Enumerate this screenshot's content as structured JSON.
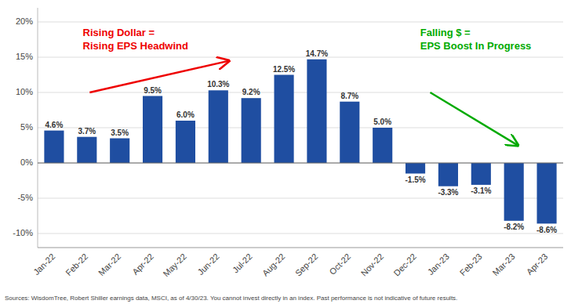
{
  "chart_data": {
    "type": "bar",
    "categories": [
      "Jan-22",
      "Feb-22",
      "Mar-22",
      "Apr-22",
      "May-22",
      "Jun-22",
      "Jul-22",
      "Aug-22",
      "Sep-22",
      "Oct-22",
      "Nov-22",
      "Dec-22",
      "Jan-23",
      "Feb-23",
      "Mar-23",
      "Apr-23"
    ],
    "values": [
      4.6,
      3.7,
      3.5,
      9.5,
      6.0,
      10.3,
      9.2,
      12.5,
      14.7,
      8.7,
      5.0,
      -1.5,
      -3.3,
      -3.1,
      -8.2,
      -8.6
    ],
    "value_labels": [
      "4.6%",
      "3.7%",
      "3.5%",
      "9.5%",
      "6.0%",
      "10.3%",
      "9.2%",
      "12.5%",
      "14.7%",
      "8.7%",
      "5.0%",
      "-1.5%",
      "-3.3%",
      "-3.1%",
      "-8.2%",
      "-8.6%"
    ],
    "data_labels": true,
    "color": "#1f4ea1",
    "ylim": [
      -12,
      22
    ],
    "yticks": [
      {
        "value": -10,
        "label": "-10%"
      },
      {
        "value": -5,
        "label": "-5%"
      },
      {
        "value": 0,
        "label": "0%"
      },
      {
        "value": 5,
        "label": "5%"
      },
      {
        "value": 10,
        "label": "10%"
      },
      {
        "value": 15,
        "label": "15%"
      },
      {
        "value": 20,
        "label": "20%"
      }
    ],
    "grid": true,
    "annotations": [
      {
        "text": "Rising Dollar =\nRising EPS Headwind",
        "color": "#ee0000"
      },
      {
        "text": "Falling $ =\nEPS Boost In Progress",
        "color": "#00aa00"
      }
    ],
    "footnote": "Sources: WisdomTree, Robert Shiller earnings data, MSCI, as of 4/30/23. You cannot invest directly in an index. Past performance is not indicative of future results."
  }
}
